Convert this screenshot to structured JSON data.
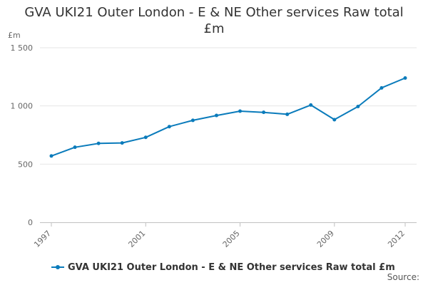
{
  "chart_data": {
    "type": "line",
    "title_line1": "GVA UKI21 Outer London - E & NE Other services Raw total",
    "title_line2": "£m",
    "ylabel": "£m",
    "ylim": [
      0,
      1500
    ],
    "yticks": [
      0,
      500,
      1000,
      1500
    ],
    "ytick_labels": [
      "0",
      "500",
      "1 000",
      "1 500"
    ],
    "xlim": [
      1997,
      2012
    ],
    "xticks": [
      1997,
      2001,
      2005,
      2009,
      2012
    ],
    "xtick_labels": [
      "1997",
      "2001",
      "2005",
      "2009",
      "2012"
    ],
    "grid": true,
    "series": [
      {
        "name": "GVA UKI21 Outer London - E & NE Other services Raw total £m",
        "color": "#0a7bbb",
        "x": [
          1997,
          1998,
          1999,
          2000,
          2001,
          2002,
          2003,
          2004,
          2005,
          2006,
          2007,
          2008,
          2009,
          2010,
          2011,
          2012
        ],
        "values": [
          570,
          645,
          678,
          682,
          730,
          822,
          876,
          918,
          955,
          945,
          928,
          1008,
          882,
          995,
          1155,
          1240
        ]
      }
    ],
    "legend_position": "bottom-left",
    "source_label": "Source:"
  }
}
